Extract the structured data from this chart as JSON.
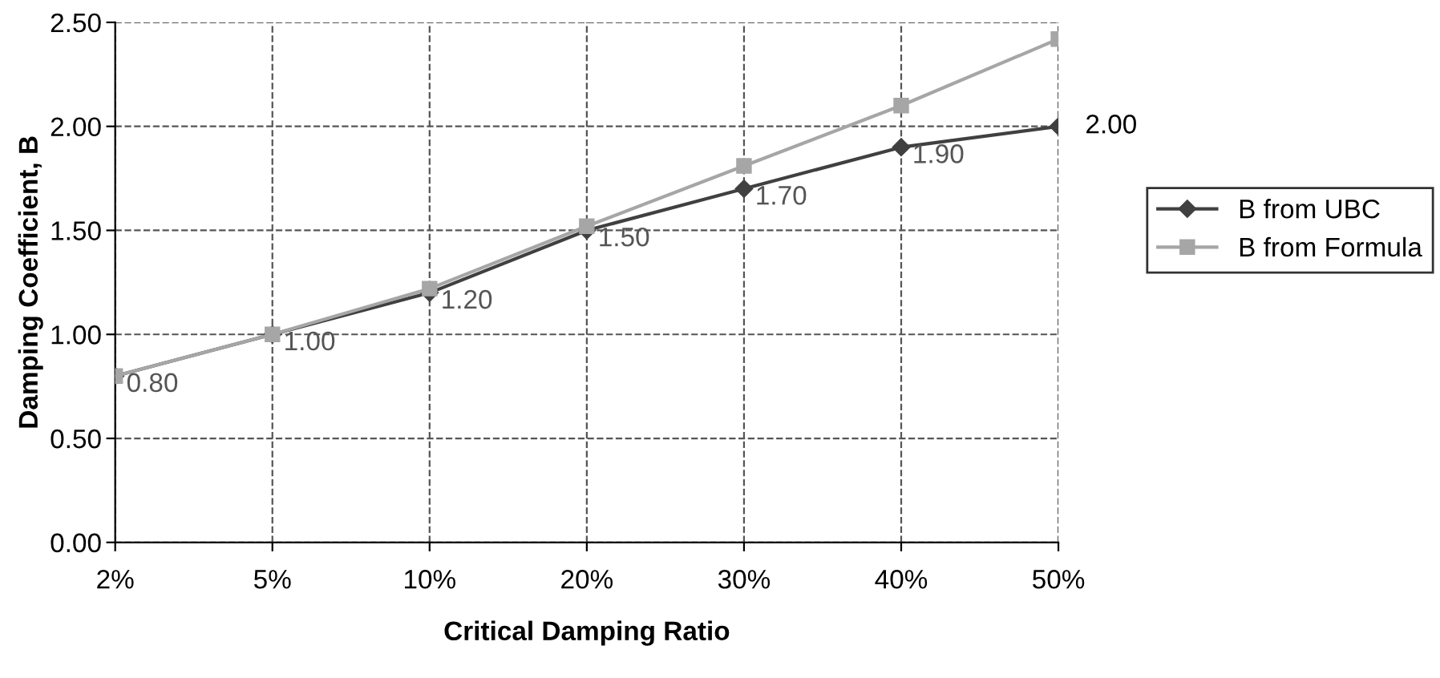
{
  "chart_data": {
    "type": "line",
    "xlabel": "Critical Damping Ratio",
    "ylabel": "Damping Coefficient, B",
    "categories": [
      "2%",
      "5%",
      "10%",
      "20%",
      "30%",
      "40%",
      "50%"
    ],
    "series": [
      {
        "name": "B from UBC",
        "color": "#404040",
        "marker": "diamond",
        "values": [
          0.8,
          1.0,
          1.2,
          1.5,
          1.7,
          1.9,
          2.0
        ],
        "value_labels": [
          "0.80",
          "1.00",
          "1.20",
          "1.50",
          "1.70",
          "1.90",
          "2.00"
        ]
      },
      {
        "name": "B from Formula",
        "color": "#a6a6a6",
        "marker": "square",
        "values": [
          0.8,
          1.0,
          1.22,
          1.52,
          1.81,
          2.1,
          2.42
        ]
      }
    ],
    "ylim": [
      0,
      2.5
    ],
    "yticks": [
      "0.00",
      "0.50",
      "1.00",
      "1.50",
      "2.00",
      "2.50"
    ],
    "grid": true,
    "line_style": "solid",
    "legend": "right"
  }
}
